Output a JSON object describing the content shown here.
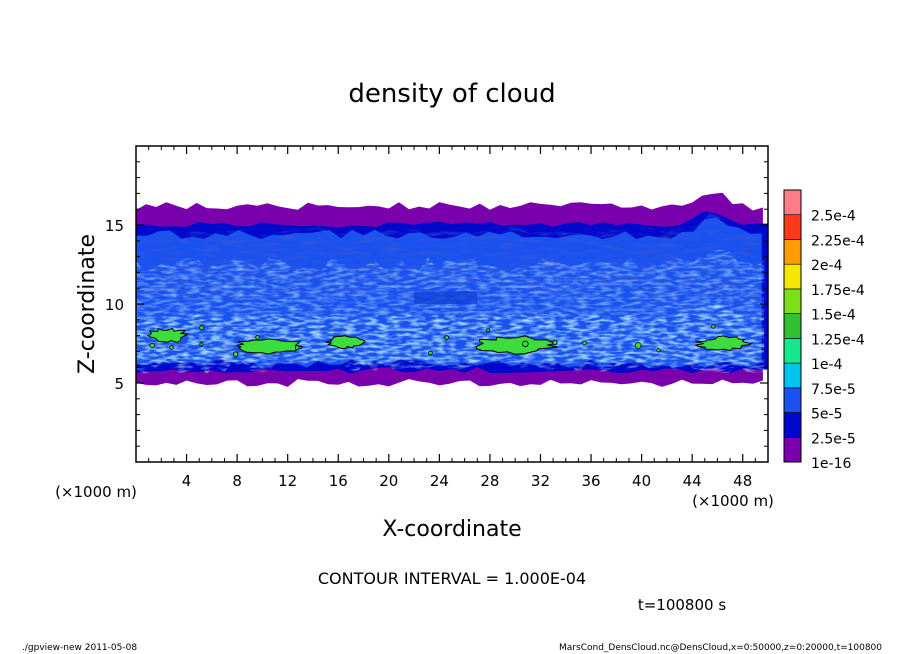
{
  "chart_data": {
    "type": "heatmap",
    "title": "density of cloud",
    "xlabel": "X-coordinate",
    "ylabel": "Z-coordinate",
    "x_unit_label": "(×1000 m)",
    "y_unit_label": "(×1000 m)",
    "xlim": [
      0,
      50
    ],
    "ylim": [
      0,
      20
    ],
    "x_ticks": [
      4,
      8,
      12,
      16,
      20,
      24,
      28,
      32,
      36,
      40,
      44,
      48
    ],
    "y_ticks": [
      5,
      10,
      15
    ],
    "colorbar": {
      "levels": [
        {
          "label": "1e-16",
          "color": "#7a00ad"
        },
        {
          "label": "2.5e-5",
          "color": "#0008cc"
        },
        {
          "label": "5e-5",
          "color": "#1a52f0"
        },
        {
          "label": "7.5e-5",
          "color": "#00c4ee"
        },
        {
          "label": "1e-4",
          "color": "#14e88a"
        },
        {
          "label": "1.25e-4",
          "color": "#30c030"
        },
        {
          "label": "1.5e-4",
          "color": "#7be01a"
        },
        {
          "label": "1.75e-4",
          "color": "#f5e600"
        },
        {
          "label": "2e-4",
          "color": "#ff9c00"
        },
        {
          "label": "2.25e-4",
          "color": "#ff3a1a"
        },
        {
          "label": "2.5e-4",
          "color": "#ff7b8a"
        }
      ]
    },
    "cloud_layer": {
      "purple_bottom_km": 5.0,
      "purple_top_km": 16.2,
      "blue_bottom_km": 5.8,
      "blue_top_km": 15.0,
      "cyan_band_km": [
        6.0,
        12.5
      ],
      "green_patches": [
        {
          "x_center_km": 10.5,
          "z_center_km": 7.3,
          "width_km": 5.5,
          "height_km": 0.9
        },
        {
          "x_center_km": 16.5,
          "z_center_km": 7.6,
          "width_km": 2.8,
          "height_km": 0.8
        },
        {
          "x_center_km": 30.0,
          "z_center_km": 7.4,
          "width_km": 6.0,
          "height_km": 1.0
        },
        {
          "x_center_km": 2.5,
          "z_center_km": 8.0,
          "width_km": 3.0,
          "height_km": 0.8
        },
        {
          "x_center_km": 46.5,
          "z_center_km": 7.5,
          "width_km": 4.0,
          "height_km": 0.8
        }
      ]
    },
    "contour_interval_text": "CONTOUR INTERVAL = 1.000E-04",
    "time_text": "t=100800 s"
  },
  "footer": {
    "left": "./gpview-new  2011-05-08",
    "right": "MarsCond_DensCloud.nc@DensCloud,x=0:50000,z=0:20000,t=100800"
  }
}
